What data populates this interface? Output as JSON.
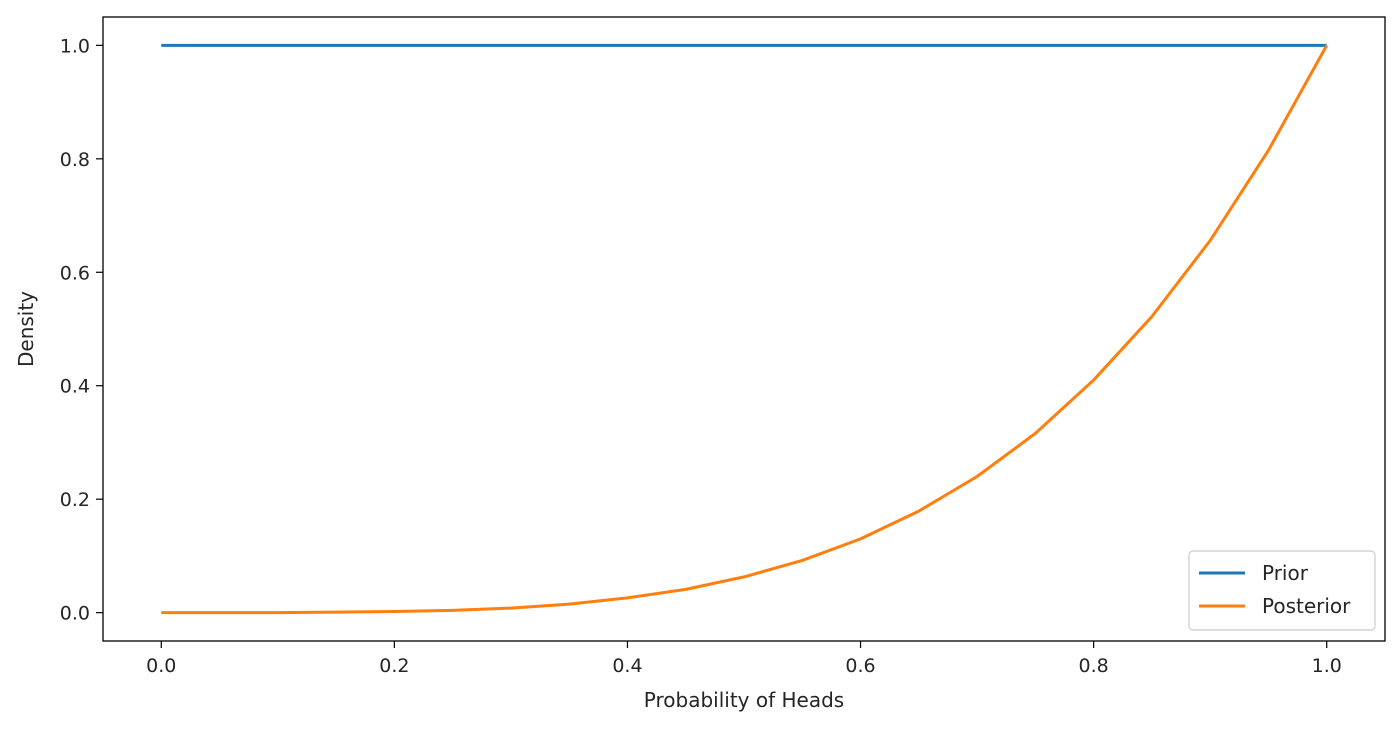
{
  "chart_data": {
    "type": "line",
    "title": "",
    "xlabel": "Probability of Heads",
    "ylabel": "Density",
    "xlim": [
      -0.05,
      1.05
    ],
    "ylim": [
      -0.05,
      1.05
    ],
    "xticks": [
      0.0,
      0.2,
      0.4,
      0.6,
      0.8,
      1.0
    ],
    "xtick_labels": [
      "0.0",
      "0.2",
      "0.4",
      "0.6",
      "0.8",
      "1.0"
    ],
    "yticks": [
      0.0,
      0.2,
      0.4,
      0.6,
      0.8,
      1.0
    ],
    "ytick_labels": [
      "0.0",
      "0.2",
      "0.4",
      "0.6",
      "0.8",
      "1.0"
    ],
    "grid": false,
    "legend_position": "bottom-right",
    "x": [
      0.0,
      0.05,
      0.1,
      0.15,
      0.2,
      0.25,
      0.3,
      0.35,
      0.4,
      0.45,
      0.5,
      0.55,
      0.6,
      0.65,
      0.7,
      0.75,
      0.8,
      0.85,
      0.9,
      0.95,
      1.0
    ],
    "series": [
      {
        "name": "Prior",
        "color": "#1f77b4",
        "values": [
          1.0,
          1.0,
          1.0,
          1.0,
          1.0,
          1.0,
          1.0,
          1.0,
          1.0,
          1.0,
          1.0,
          1.0,
          1.0,
          1.0,
          1.0,
          1.0,
          1.0,
          1.0,
          1.0,
          1.0,
          1.0
        ]
      },
      {
        "name": "Posterior",
        "color": "#ff7f0e",
        "values": [
          0.0,
          0.0,
          0.0,
          0.001,
          0.002,
          0.004,
          0.008,
          0.015,
          0.026,
          0.041,
          0.063,
          0.092,
          0.13,
          0.179,
          0.24,
          0.316,
          0.41,
          0.522,
          0.656,
          0.815,
          1.0
        ]
      }
    ]
  }
}
